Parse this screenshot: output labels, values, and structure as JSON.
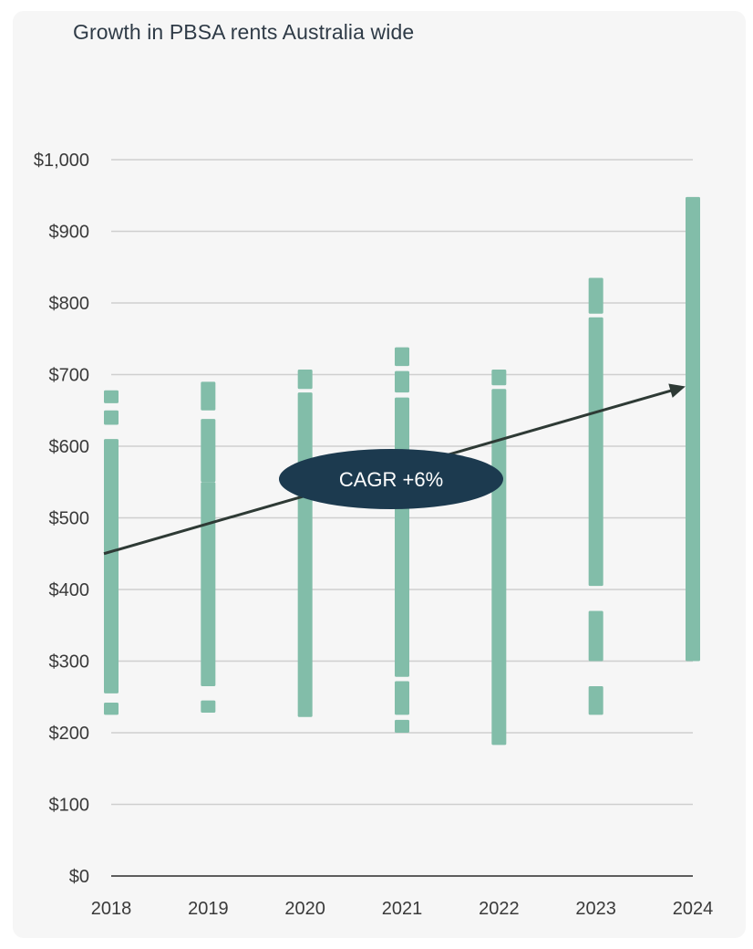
{
  "chart_data": {
    "type": "bar",
    "title": "Growth in PBSA rents Australia wide",
    "xlabel": "",
    "ylabel": "",
    "categories": [
      "2018",
      "2019",
      "2020",
      "2021",
      "2022",
      "2023",
      "2024"
    ],
    "yticks": [
      "$0",
      "$100",
      "$200",
      "$300",
      "$400",
      "$500",
      "$600",
      "$700",
      "$800",
      "$900",
      "$1,000"
    ],
    "ylim": [
      0,
      1000
    ],
    "grid": true,
    "ranges": [
      {
        "year": "2018",
        "segments": [
          [
            225,
            242
          ],
          [
            255,
            610
          ],
          [
            630,
            650
          ],
          [
            660,
            678
          ]
        ]
      },
      {
        "year": "2019",
        "segments": [
          [
            228,
            245
          ],
          [
            265,
            550
          ],
          [
            550,
            638
          ],
          [
            650,
            690
          ]
        ]
      },
      {
        "year": "2020",
        "segments": [
          [
            222,
            675
          ],
          [
            680,
            707
          ]
        ]
      },
      {
        "year": "2021",
        "segments": [
          [
            200,
            218
          ],
          [
            225,
            272
          ],
          [
            278,
            668
          ],
          [
            675,
            705
          ],
          [
            712,
            738
          ]
        ]
      },
      {
        "year": "2022",
        "segments": [
          [
            183,
            680
          ],
          [
            685,
            707
          ]
        ]
      },
      {
        "year": "2023",
        "segments": [
          [
            225,
            265
          ],
          [
            300,
            370
          ],
          [
            405,
            780
          ],
          [
            785,
            835
          ]
        ]
      },
      {
        "year": "2024",
        "segments": [
          [
            300,
            948
          ]
        ]
      }
    ],
    "trend": {
      "start": {
        "x": "2018",
        "y": 450
      },
      "end": {
        "x": "2024",
        "y": 682
      }
    },
    "annotation": "CAGR +6%",
    "colors": {
      "bar": "#82bda9",
      "trend": "#2e3a35",
      "annotation_bg": "#1c3a4f",
      "grid": "#cfcfcf"
    }
  }
}
